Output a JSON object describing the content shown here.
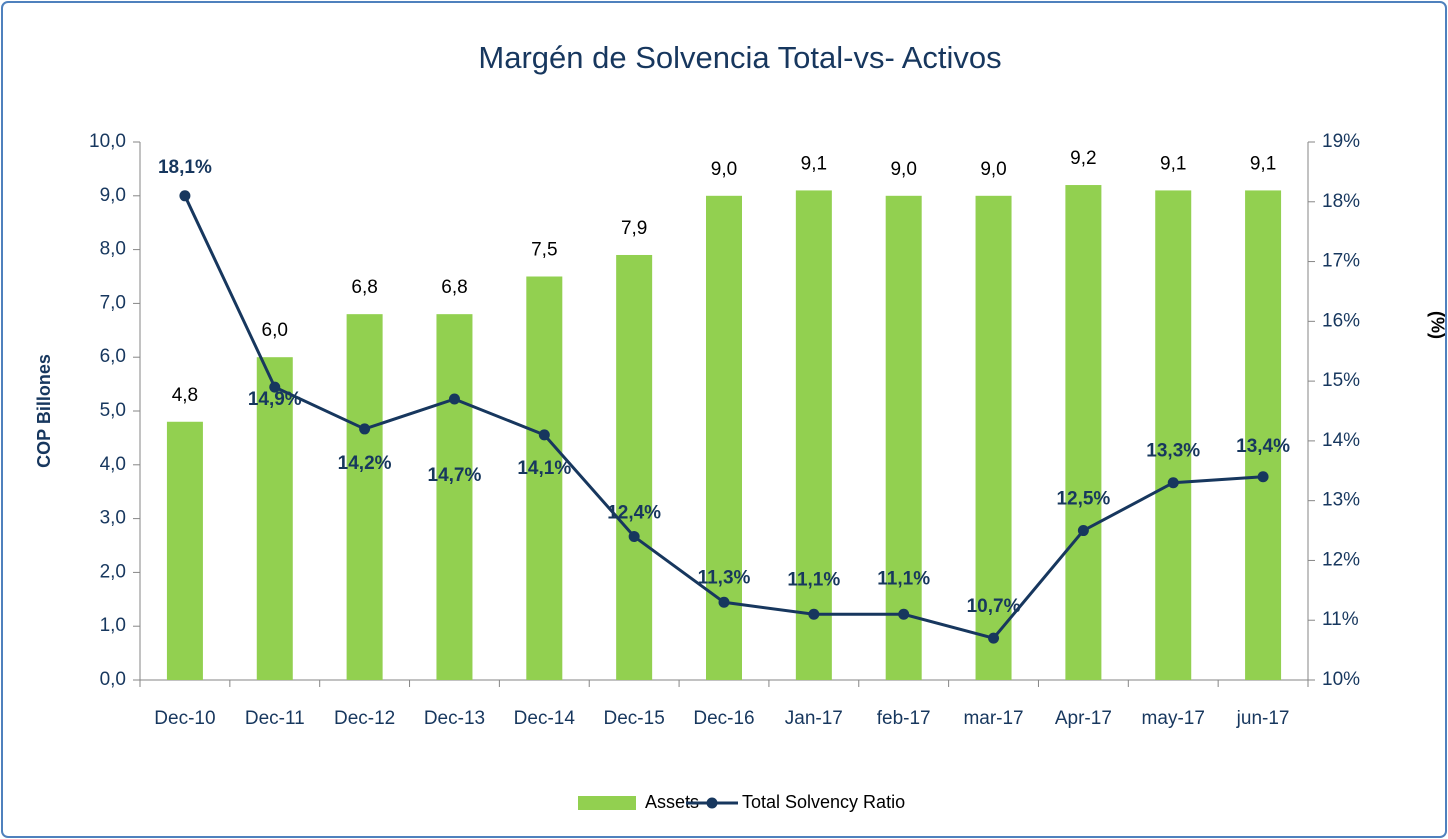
{
  "chart_data": {
    "type": "bar_line",
    "title": "Margén de Solvencia Total-vs- Activos",
    "y_label": "COP Billones",
    "y2_label": "(%)",
    "categories": [
      "Dec-10",
      "Dec-11",
      "Dec-12",
      "Dec-13",
      "Dec-14",
      "Dec-15",
      "Dec-16",
      "Jan-17",
      "feb-17",
      "mar-17",
      "Apr-17",
      "may-17",
      "jun-17"
    ],
    "series": [
      {
        "name": "Assets",
        "type": "bar",
        "color": "#92d050",
        "values": [
          4.8,
          6.0,
          6.8,
          6.8,
          7.5,
          7.9,
          9.0,
          9.1,
          9.0,
          9.0,
          9.2,
          9.1,
          9.1
        ],
        "value_labels": [
          "4,8",
          "6,0",
          "6,8",
          "6,8",
          "7,5",
          "7,9",
          "9,0",
          "9,1",
          "9,0",
          "9,0",
          "9,2",
          "9,1",
          "9,1"
        ]
      },
      {
        "name": "Total Solvency Ratio",
        "type": "line",
        "axis": "y2",
        "color": "#17375e",
        "values": [
          18.1,
          14.9,
          14.2,
          14.7,
          14.1,
          12.4,
          11.3,
          11.1,
          11.1,
          10.7,
          12.5,
          13.3,
          13.4
        ],
        "value_labels": [
          "18,1%",
          "14,9%",
          "14,2%",
          "14,7%",
          "14,1%",
          "12,4%",
          "11,3%",
          "11,1%",
          "11,1%",
          "10,7%",
          "12,5%",
          "13,3%",
          "13,4%"
        ]
      }
    ],
    "ylim": [
      0,
      10
    ],
    "yticks": [
      {
        "value": 0,
        "label": "0,0"
      },
      {
        "value": 1,
        "label": "1,0"
      },
      {
        "value": 2,
        "label": "2,0"
      },
      {
        "value": 3,
        "label": "3,0"
      },
      {
        "value": 4,
        "label": "4,0"
      },
      {
        "value": 5,
        "label": "5,0"
      },
      {
        "value": 6,
        "label": "6,0"
      },
      {
        "value": 7,
        "label": "7,0"
      },
      {
        "value": 8,
        "label": "8,0"
      },
      {
        "value": 9,
        "label": "9,0"
      },
      {
        "value": 10,
        "label": "10,0"
      }
    ],
    "y2lim": [
      10,
      19
    ],
    "y2ticks": [
      {
        "value": 10,
        "label": "10%"
      },
      {
        "value": 11,
        "label": "11%"
      },
      {
        "value": 12,
        "label": "12%"
      },
      {
        "value": 13,
        "label": "13%"
      },
      {
        "value": 14,
        "label": "14%"
      },
      {
        "value": 15,
        "label": "15%"
      },
      {
        "value": 16,
        "label": "16%"
      },
      {
        "value": 17,
        "label": "17%"
      },
      {
        "value": 18,
        "label": "18%"
      },
      {
        "value": 19,
        "label": "19%"
      }
    ],
    "legend": "bottom"
  }
}
